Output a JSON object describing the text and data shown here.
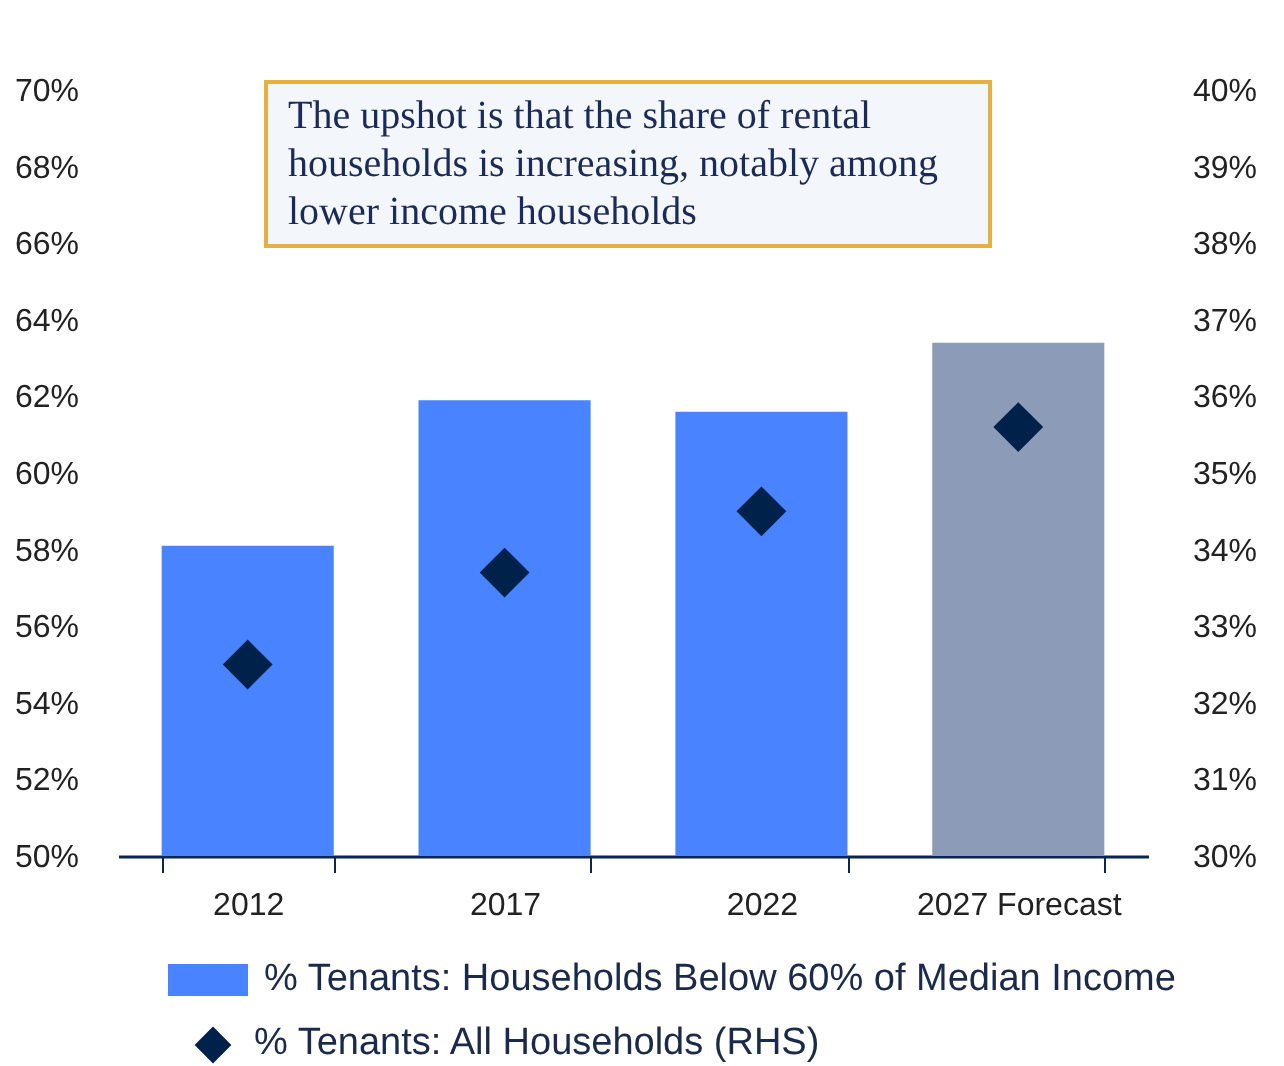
{
  "chart_data": {
    "type": "bar",
    "categories": [
      "2012",
      "2017",
      "2022",
      "2027 Forecast"
    ],
    "series": [
      {
        "name": "% Tenants: Households Below 60% of Median Income",
        "color": "#4a83ff",
        "colors": [
          "#4a83ff",
          "#4a83ff",
          "#4a83ff",
          "#8c9bb8"
        ],
        "values": [
          58.1,
          61.9,
          61.6,
          63.4
        ]
      },
      {
        "name": "% Tenants: All Households (RHS)",
        "type": "scatter",
        "axis": "y2",
        "marker": "diamond",
        "color": "#00214a",
        "values": [
          32.5,
          33.7,
          34.5,
          35.6
        ]
      }
    ],
    "ylim": [
      50,
      70
    ],
    "yticks": [
      {
        "value": 50,
        "label": "50%"
      },
      {
        "value": 52,
        "label": "52%"
      },
      {
        "value": 54,
        "label": "54%"
      },
      {
        "value": 56,
        "label": "56%"
      },
      {
        "value": 58,
        "label": "58%"
      },
      {
        "value": 60,
        "label": "60%"
      },
      {
        "value": 62,
        "label": "62%"
      },
      {
        "value": 64,
        "label": "64%"
      },
      {
        "value": 66,
        "label": "66%"
      },
      {
        "value": 68,
        "label": "68%"
      },
      {
        "value": 70,
        "label": "70%"
      }
    ],
    "y2lim": [
      30,
      40
    ],
    "y2ticks": [
      {
        "value": 30,
        "label": "30%"
      },
      {
        "value": 31,
        "label": "31%"
      },
      {
        "value": 32,
        "label": "32%"
      },
      {
        "value": 33,
        "label": "33%"
      },
      {
        "value": 34,
        "label": "34%"
      },
      {
        "value": 35,
        "label": "35%"
      },
      {
        "value": 36,
        "label": "36%"
      },
      {
        "value": 37,
        "label": "37%"
      },
      {
        "value": 38,
        "label": "38%"
      },
      {
        "value": 39,
        "label": "39%"
      },
      {
        "value": 40,
        "label": "40%"
      }
    ],
    "grid": false,
    "legend": "bottom",
    "annotations": [
      "The upshot is that the share of rental households is increasing, notably among lower income households"
    ]
  }
}
